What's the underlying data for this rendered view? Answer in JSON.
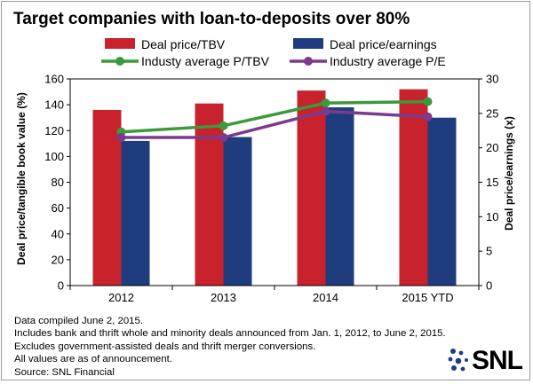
{
  "chart_data": {
    "type": "bar",
    "title": "Target companies with loan-to-deposits over 80%",
    "categories": [
      "2012",
      "2013",
      "2014",
      "2015 YTD"
    ],
    "ylabel_left": "Deal price/tangible book value (%)",
    "ylabel_right": "Deal price/earnings (x)",
    "ylim_left": [
      0,
      160
    ],
    "ylim_right": [
      0,
      30
    ],
    "yticks_left": [
      "0",
      "20",
      "40",
      "60",
      "80",
      "100",
      "120",
      "140",
      "160"
    ],
    "yticks_right": [
      "0",
      "5",
      "10",
      "15",
      "20",
      "25",
      "30"
    ],
    "series": [
      {
        "name": "Deal price/TBV",
        "kind": "bar",
        "axis": "left",
        "color": "#c8222d",
        "values": [
          136,
          141,
          151,
          152
        ]
      },
      {
        "name": "Deal price/earnings",
        "kind": "bar",
        "axis": "left",
        "color": "#1f3c7e",
        "values": [
          112,
          115,
          138,
          130
        ]
      },
      {
        "name": "Industy average P/TBV",
        "kind": "line",
        "axis": "right",
        "color": "#3b9a3b",
        "values": [
          22.3,
          23.2,
          26.5,
          26.7
        ]
      },
      {
        "name": "Industry average P/E",
        "kind": "line",
        "axis": "right",
        "color": "#7b3a8e",
        "values": [
          21.5,
          21.5,
          25.3,
          24.5
        ]
      }
    ],
    "legend": "top",
    "grid": false
  },
  "footnotes": [
    "Data compiled June 2, 2015.",
    "Includes bank and thrift whole and minority deals announced from Jan. 1, 2012, to June 2, 2015.",
    "Excludes government-assisted deals and thrift merger conversions.",
    "All values are as of announcement.",
    "Source: SNL Financial"
  ],
  "logo": {
    "text": "SNL",
    "dot_color": "#1f3c7e"
  }
}
